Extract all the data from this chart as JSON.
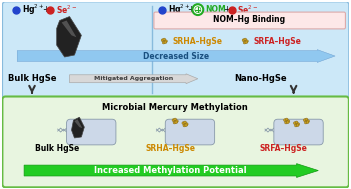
{
  "fig_width": 3.51,
  "fig_height": 1.89,
  "dpi": 100,
  "top_bg": "#cce8f8",
  "bottom_bg": "#e8f5e0",
  "top_box_edge": "#88bbdd",
  "bottom_box_edge": "#66bb44",
  "nomb_box_bg": "#fde8e8",
  "nomb_box_edge": "#ddaaaa",
  "decreased_arrow_color": "#90c8f0",
  "decreased_text_color": "#1a5080",
  "mitigated_arrow_color": "#d8d8d8",
  "mitigated_edge_color": "#aaaaaa",
  "increased_arrow_color": "#22cc22",
  "increased_edge_color": "#119911",
  "hg2_color": "#2244cc",
  "se2_color": "#cc2222",
  "nom_color": "#22aa22",
  "srha_color": "#cc8800",
  "srfa_color": "#cc2222",
  "crystal_color": "#222222",
  "crystal_highlight": "#555555",
  "bact_face": "#ccd8e8",
  "bact_edge": "#8899aa",
  "nano_face": "#c8a020",
  "nano_edge": "#806010",
  "divider_color": "#88bbdd",
  "down_arrow_color": "#333333",
  "nom_hg_binding": "NOM–Hg Binding",
  "srha_label": "SRHA–HgSe",
  "srfa_label": "SRFA–HgSe",
  "bulk_label": "Bulk HgSe",
  "nano_label": "Nano-HgSe",
  "microbial_title": "Microbial Mercury Methylation",
  "bulk_bottom": "Bulk HgSe",
  "srha_bottom": "SRHA–HgSe",
  "srfa_bottom": "SRFA–HgSe",
  "decreased_text": "Decreased Size",
  "mitigated_text": "Mitigated Aggregation",
  "increased_text": "Increased Methylation Potential"
}
